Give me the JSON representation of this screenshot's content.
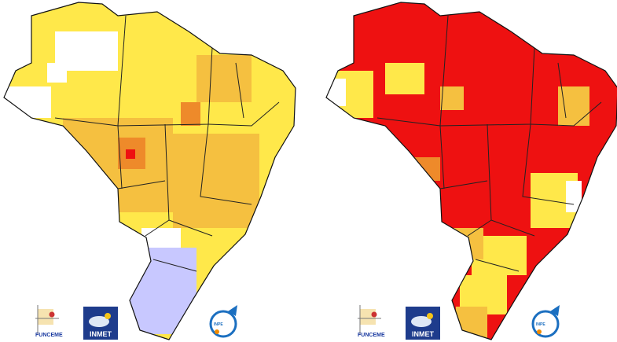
{
  "maps": [
    {
      "logos": {
        "funceme": "FUNCEME",
        "inmet": "INMET",
        "inpe": "INPE"
      }
    },
    {
      "logos": {
        "funceme": "FUNCEME",
        "inmet": "INMET",
        "inpe": "INPE"
      }
    }
  ]
}
